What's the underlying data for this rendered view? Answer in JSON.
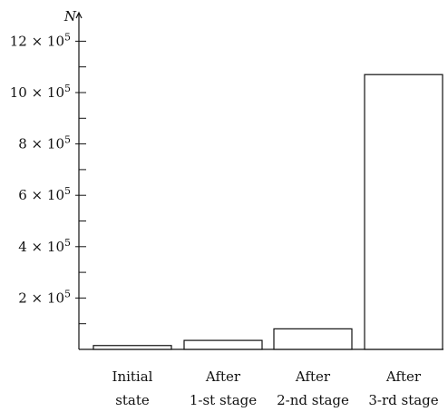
{
  "chart_data": {
    "type": "bar",
    "title": "",
    "xlabel": "",
    "ylabel": "N",
    "ylim": [
      0,
      1300000
    ],
    "grid": false,
    "legend": "none",
    "bar_fill": "#ffffff",
    "bar_stroke": "#111111",
    "categories": [
      [
        "Initial",
        "state"
      ],
      [
        "After",
        "1-st stage"
      ],
      [
        "After",
        "2-nd stage"
      ],
      [
        "After",
        "3-rd stage"
      ]
    ],
    "values": [
      15000,
      35000,
      80000,
      1070000
    ],
    "major_ticks": [
      {
        "value": 200000,
        "mantissa": "2",
        "times": "×",
        "base": "10",
        "exponent": "5"
      },
      {
        "value": 400000,
        "mantissa": "4",
        "times": "×",
        "base": "10",
        "exponent": "5"
      },
      {
        "value": 600000,
        "mantissa": "6",
        "times": "×",
        "base": "10",
        "exponent": "5"
      },
      {
        "value": 800000,
        "mantissa": "8",
        "times": "×",
        "base": "10",
        "exponent": "5"
      },
      {
        "value": 1000000,
        "mantissa": "10",
        "times": "×",
        "base": "10",
        "exponent": "5"
      },
      {
        "value": 1200000,
        "mantissa": "12",
        "times": "×",
        "base": "10",
        "exponent": "5"
      }
    ],
    "minor_ticks": [
      100000,
      300000,
      500000,
      700000,
      900000,
      1100000
    ]
  }
}
